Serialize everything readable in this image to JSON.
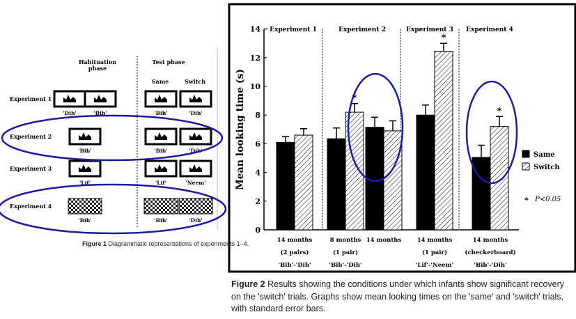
{
  "figure1": {
    "headers": {
      "habituation": [
        "Habituation",
        "phase"
      ],
      "test": "Test phase",
      "same": "Same",
      "switch": "Switch"
    },
    "rows": [
      {
        "label": "Experiment 1",
        "hab": [
          "'Dih'",
          "'Bih'"
        ],
        "same": "'Bih'",
        "switch": "'Dih'"
      },
      {
        "label": "Experiment 2",
        "hab": [
          "'Bih'"
        ],
        "same": "'Bih'",
        "switch": "'Dih'"
      },
      {
        "label": "Experiment 3",
        "hab": [
          "'Lif'"
        ],
        "same": "'Lif'",
        "switch": "'Neem'"
      },
      {
        "label": "Experiment 4",
        "hab": [
          "'Bih'"
        ],
        "same": "'Bih'",
        "switch": "'Dih'"
      }
    ],
    "caption_bold": "Figure 1",
    "caption_text": " Diagrammatic representations of experiments 1–4."
  },
  "chart_data": {
    "type": "bar",
    "ylabel": "Mean looking time (s)",
    "ylim": [
      0,
      14
    ],
    "yticks": [
      0,
      2,
      4,
      6,
      8,
      10,
      12,
      14
    ],
    "experiments": [
      "Experiment 1",
      "Experiment 2",
      "Experiment 3",
      "Experiment 4"
    ],
    "categories": [
      {
        "lines": [
          "14 months",
          "(2 pairs)",
          "'Bih'-'Dih'"
        ]
      },
      {
        "lines": [
          "8 months",
          "(1 pair)",
          "'Bih'-'Dih'"
        ]
      },
      {
        "lines": [
          "14 months",
          "",
          ""
        ]
      },
      {
        "lines": [
          "14 months",
          "(1 pair)",
          "'Lif'-'Neem'"
        ]
      },
      {
        "lines": [
          "14 months",
          "(checkerboard)",
          "'Bih'-'Dih'"
        ]
      }
    ],
    "series": [
      {
        "name": "Same",
        "values": [
          6.1,
          6.35,
          7.15,
          8.0,
          5.05
        ],
        "errors": [
          0.4,
          0.75,
          0.7,
          0.7,
          0.85
        ]
      },
      {
        "name": "Switch",
        "values": [
          6.6,
          8.2,
          6.9,
          12.45,
          7.2
        ],
        "errors": [
          0.45,
          0.6,
          0.7,
          0.55,
          0.7
        ]
      }
    ],
    "significant": [
      {
        "category": 1,
        "series": 1
      },
      {
        "category": 3,
        "series": 1
      },
      {
        "category": 4,
        "series": 1
      }
    ],
    "significance_note": "P<0.05",
    "caption_bold": "Figure 2",
    "caption_text": " Results showing the conditions under which infants show significant recovery on the 'switch' trials. Graphs show mean looking times on the 'same' and 'switch' trials, with standard error bars."
  },
  "colors": {
    "frame": "#000000",
    "ellipse": "#1a1aa8",
    "same": "#000000",
    "switch_hatch": "#000000"
  }
}
